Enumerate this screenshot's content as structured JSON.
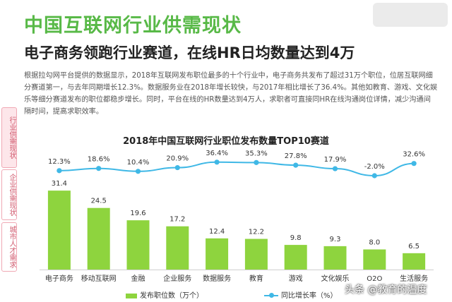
{
  "header": {
    "title": "中国互联网行业供需现状",
    "subtitle": "电子商务领跑行业赛道，在线HR日均数量达到4万"
  },
  "paragraph": "根据拉勾网平台提供的数据显示，2018年互联网发布职位最多的十个行业中，电子商务共发布了超过31万个职位，位居互联网细分赛道第一，与去年同期增长12.3%。数据服务业在2018年增长较快，与2017年相比增长了36.4%。其他如教育、游戏、文化娱乐等细分赛道发布的职位都稳步增长。同时，平台在线的HR数量达到4万人，求职者可直接同HR在线沟通岗位详情，减少沟通间隔时间，提高求职效率。",
  "side_tabs": [
    "行业供需现状",
    "企业供需现状",
    "城市人才需求"
  ],
  "watermark": "头条 @教育的温度",
  "colors": {
    "title_green": "#58b947",
    "bar": "#8ed43e",
    "line": "#3fb8e6",
    "tab_pink": "#d05a6e"
  },
  "chart_data": {
    "type": "bar",
    "title": "2018年中国互联网行业职位发布数量TOP10赛道",
    "categories": [
      "电子商务",
      "移动互联网",
      "金融",
      "企业服务",
      "数据服务",
      "教育",
      "游戏",
      "文化娱乐",
      "O2O",
      "生活服务"
    ],
    "series": [
      {
        "name": "发布职位数（万个）",
        "type": "bar",
        "values": [
          31.4,
          24.5,
          19.6,
          17.2,
          12.4,
          12.2,
          9.8,
          9.3,
          8.0,
          6.5
        ],
        "labels": [
          "31.4",
          "24.5",
          "19.6",
          "17.2",
          "12.4",
          "12.2",
          "9.8",
          "9.3",
          "8.0",
          "6.5"
        ]
      },
      {
        "name": "同比增长率（%）",
        "type": "line",
        "values": [
          12.3,
          18.6,
          10.4,
          20.9,
          36.4,
          35.3,
          27.8,
          17.9,
          -2.0,
          32.6
        ],
        "labels": [
          "12.3%",
          "18.6%",
          "10.4%",
          "20.9%",
          "36.4%",
          "35.3%",
          "27.8%",
          "17.9%",
          "-2.0%",
          "32.6%"
        ]
      }
    ],
    "ylim_bar": [
      0,
      32
    ],
    "ylim_line": [
      -40,
      60
    ],
    "legend_position": "bottom"
  }
}
